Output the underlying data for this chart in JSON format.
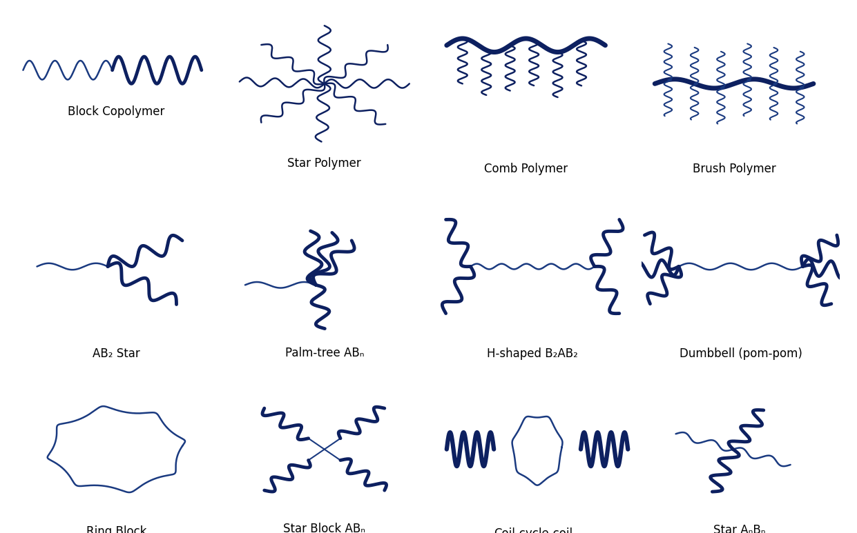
{
  "color_dark": "#0d2060",
  "color_light": "#1a3a80",
  "background": "#ffffff",
  "labels": [
    "Block Copolymer",
    "Star Polymer",
    "Comb Polymer",
    "Brush Polymer",
    "AB₂ Star",
    "Palm-tree ABₙ",
    "H-shaped B₂AB₂",
    "Dumbbell (pom-pom)",
    "Ring Block",
    "Star Block ABₙ",
    "Coil-cycle-coil",
    "Star AₙBₙ"
  ]
}
